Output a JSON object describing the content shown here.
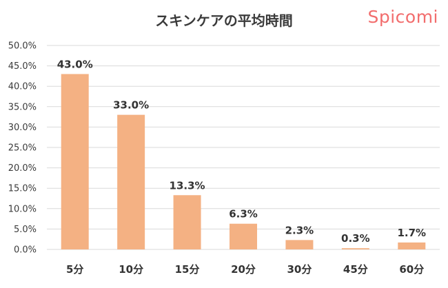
{
  "title": "スキンケアの平均時間",
  "brand": "Spicomi",
  "chart_data": {
    "type": "bar",
    "title": "スキンケアの平均時間",
    "categories": [
      "5分",
      "10分",
      "15分",
      "20分",
      "30分",
      "45分",
      "60分"
    ],
    "values": [
      43.0,
      33.0,
      13.3,
      6.3,
      2.3,
      0.3,
      1.7
    ],
    "data_labels": [
      "43.0%",
      "33.0%",
      "13.3%",
      "6.3%",
      "2.3%",
      "0.3%",
      "1.7%"
    ],
    "yticks": [
      "0.0%",
      "5.0%",
      "10.0%",
      "15.0%",
      "20.0%",
      "25.0%",
      "30.0%",
      "35.0%",
      "40.0%",
      "45.0%",
      "50.0%"
    ],
    "ylim": [
      0,
      50
    ],
    "grid": true,
    "legend": "none",
    "bar_color": "#f4b183",
    "grid_color": "#d9d9d9"
  }
}
